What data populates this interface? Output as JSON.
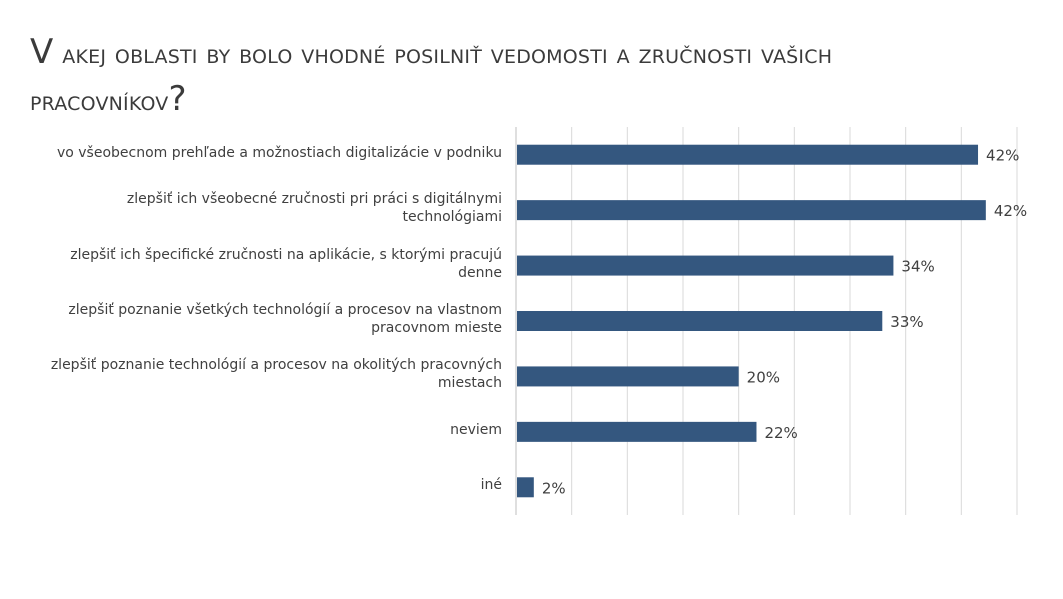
{
  "title": {
    "line1_cap": "V",
    "line1_rest": "akej oblasti by bolo vhodné posilniť vedomosti a zručnosti vašich",
    "line2_rest": "pracovníkov",
    "line2_end": "?"
  },
  "chart_data": {
    "type": "bar",
    "orientation": "horizontal",
    "categories": [
      "vo všeobecnom prehľade a možnostiach digitalizácie v podniku",
      "zlepšiť ich všeobecné zručnosti pri práci s digitálnymi technológiami",
      "zlepšiť ich špecifické zručnosti na aplikácie, s ktorými pracujú denne",
      "zlepšiť poznanie všetkých technológií a procesov na vlastnom pracovnom mieste",
      "zlepšiť poznanie technológií a procesov na okolitých pracovných miestach",
      "neviem",
      "iné"
    ],
    "values": [
      41.5,
      42.2,
      33.9,
      32.9,
      20.0,
      21.6,
      1.6
    ],
    "data_labels": [
      "42%",
      "42%",
      "34%",
      "33%",
      "20%",
      "22%",
      "2%"
    ],
    "xlim": [
      0,
      45
    ],
    "grid": true,
    "bar_color": "#34577f",
    "grid_color": "#d9d9d9"
  }
}
